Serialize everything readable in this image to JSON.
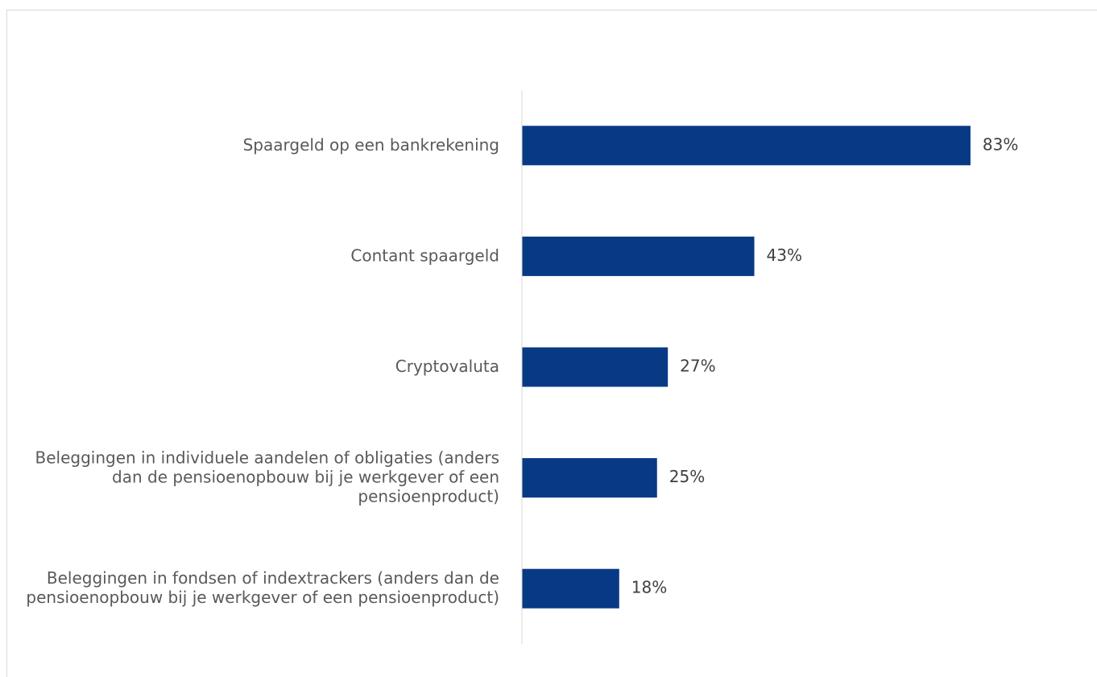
{
  "chart_data": {
    "type": "barh",
    "categories": [
      "Spaargeld op een bankrekening",
      "Contant spaargeld",
      "Cryptovaluta",
      "Beleggingen in individuele aandelen of obligaties (anders dan de pensioenopbouw bij je werkgever of een pensioenproduct)",
      "Beleggingen in fondsen of indextrackers (anders dan de pensioenopbouw bij je werkgever of een pensioenproduct)"
    ],
    "values": [
      83,
      43,
      27,
      25,
      18
    ],
    "value_labels": [
      "83%",
      "43%",
      "27%",
      "25%",
      "18%"
    ],
    "color": "#083984",
    "xlim": [
      0,
      100
    ]
  }
}
